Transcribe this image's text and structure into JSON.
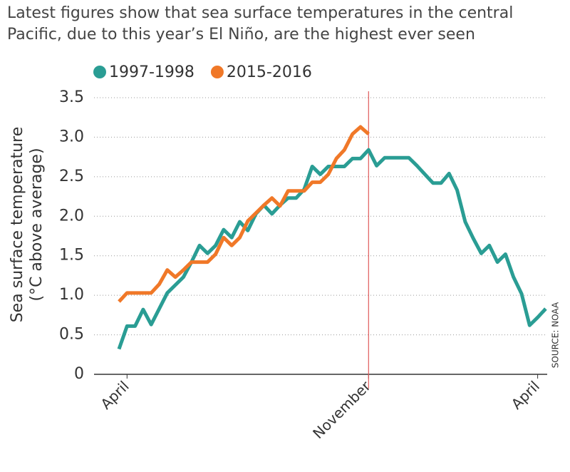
{
  "chart_data": {
    "type": "line",
    "title": "Latest figures show that sea surface temperatures in the central Pacific, due to this year’s El Niño, are the highest ever seen",
    "y_label": "Sea surface temperature",
    "y_sublabel": "(°C above average)",
    "source": "SOURCE: NOAA",
    "categories": [
      null,
      "April",
      null,
      null,
      null,
      null,
      null,
      null,
      null,
      null,
      null,
      null,
      null,
      null,
      null,
      null,
      null,
      null,
      null,
      null,
      null,
      null,
      null,
      null,
      null,
      null,
      null,
      null,
      null,
      null,
      null,
      "November",
      null,
      null,
      null,
      null,
      null,
      null,
      null,
      null,
      null,
      null,
      null,
      null,
      null,
      null,
      null,
      null,
      null,
      null,
      null,
      null,
      "April",
      null
    ],
    "vline_category": "November",
    "vline_color": "#e05a5a",
    "series": [
      {
        "name": "1997-1998",
        "color": "#2a9d94",
        "values": [
          0.32,
          0.61,
          0.61,
          0.82,
          0.63,
          0.83,
          1.03,
          1.13,
          1.23,
          1.42,
          1.63,
          1.53,
          1.63,
          1.83,
          1.73,
          1.93,
          1.82,
          2.03,
          2.14,
          2.03,
          2.14,
          2.23,
          2.23,
          2.34,
          2.63,
          2.53,
          2.63,
          2.63,
          2.63,
          2.73,
          2.73,
          2.84,
          2.64,
          2.74,
          2.74,
          2.74,
          2.74,
          2.64,
          2.53,
          2.42,
          2.42,
          2.54,
          2.33,
          1.93,
          1.72,
          1.53,
          1.63,
          1.42,
          1.52,
          1.23,
          1.02,
          0.62,
          0.72,
          0.83
        ]
      },
      {
        "name": "2015-2016",
        "color": "#f07828",
        "values": [
          0.92,
          1.03,
          1.03,
          1.03,
          1.03,
          1.14,
          1.32,
          1.23,
          1.32,
          1.42,
          1.42,
          1.42,
          1.52,
          1.73,
          1.63,
          1.73,
          1.94,
          2.04,
          2.14,
          2.23,
          2.13,
          2.32,
          2.32,
          2.32,
          2.43,
          2.43,
          2.53,
          2.73,
          2.84,
          3.04,
          3.13,
          3.04,
          null,
          null,
          null,
          null,
          null,
          null,
          null,
          null,
          null,
          null,
          null,
          null,
          null,
          null,
          null,
          null,
          null,
          null,
          null,
          null,
          null,
          null
        ]
      }
    ],
    "ylim": [
      0,
      3.5
    ],
    "yticks": [
      0,
      0.5,
      {
        "value": 1,
        "label": "1.0"
      },
      1.5,
      {
        "value": 2,
        "label": "2.0"
      },
      2.5,
      {
        "value": 3,
        "label": "3.0"
      },
      3.5
    ],
    "grid": true
  }
}
